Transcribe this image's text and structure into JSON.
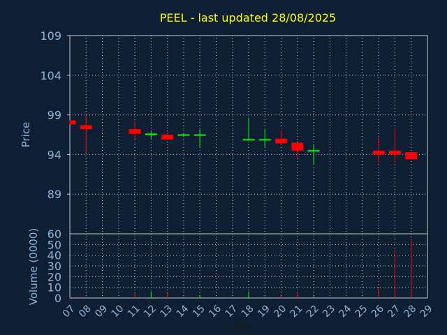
{
  "title": "PEEL - last updated 28/08/2025",
  "colors": {
    "background": "#0f1f33",
    "title": "#ffff00",
    "axis_text": "#8fb4d8",
    "grid": "#c8c8c8",
    "up": "#00ff00",
    "down": "#ff0000"
  },
  "chart_data": [
    {
      "type": "candlestick",
      "ylabel": "Price",
      "ylim": [
        84,
        109
      ],
      "yticks": [
        109,
        104,
        99,
        94,
        89
      ],
      "x": [
        "07",
        "08",
        "09",
        "10",
        "11",
        "12",
        "13",
        "14",
        "15",
        "16",
        "17",
        "18",
        "19",
        "20",
        "21",
        "22",
        "23",
        "24",
        "25",
        "26",
        "27",
        "28",
        "29"
      ],
      "grid": true,
      "candles": [
        {
          "day": "07",
          "open": 98.3,
          "close": 97.8,
          "high": 98.3,
          "low": 97.8
        },
        {
          "day": "08",
          "open": 97.7,
          "close": 97.2,
          "high": 99.0,
          "low": 94.2
        },
        {
          "day": "11",
          "open": 97.2,
          "close": 96.6,
          "high": 98.1,
          "low": 96.0
        },
        {
          "day": "12",
          "open": 96.5,
          "close": 96.6,
          "high": 96.9,
          "low": 96.0
        },
        {
          "day": "13",
          "open": 96.5,
          "close": 95.9,
          "high": 96.8,
          "low": 95.8
        },
        {
          "day": "14",
          "open": 96.4,
          "close": 96.5,
          "high": 96.6,
          "low": 96.3
        },
        {
          "day": "15",
          "open": 96.4,
          "close": 96.5,
          "high": 97.2,
          "low": 94.9
        },
        {
          "day": "18",
          "open": 95.8,
          "close": 95.9,
          "high": 98.6,
          "low": 95.8
        },
        {
          "day": "19",
          "open": 95.8,
          "close": 95.9,
          "high": 97.2,
          "low": 94.9
        },
        {
          "day": "20",
          "open": 96.0,
          "close": 95.4,
          "high": 97.1,
          "low": 95.2
        },
        {
          "day": "21",
          "open": 95.5,
          "close": 94.5,
          "high": 95.5,
          "low": 93.5
        },
        {
          "day": "22",
          "open": 94.4,
          "close": 94.5,
          "high": 95.3,
          "low": 92.8
        },
        {
          "day": "26",
          "open": 94.5,
          "close": 94.0,
          "high": 96.1,
          "low": 92.9
        },
        {
          "day": "27",
          "open": 94.5,
          "close": 94.0,
          "high": 97.2,
          "low": 92.9
        },
        {
          "day": "28",
          "open": 94.3,
          "close": 93.4,
          "high": 94.3,
          "low": 93.4
        }
      ]
    },
    {
      "type": "bar",
      "ylabel": "Volume (0000)",
      "xlabel": "Day",
      "ylim": [
        0,
        60
      ],
      "yticks": [
        60,
        50,
        40,
        30,
        20,
        10,
        0
      ],
      "x": [
        "07",
        "08",
        "09",
        "10",
        "11",
        "12",
        "13",
        "14",
        "15",
        "16",
        "17",
        "18",
        "19",
        "20",
        "21",
        "22",
        "23",
        "24",
        "25",
        "26",
        "27",
        "28",
        "29"
      ],
      "bars": [
        {
          "day": "07",
          "value": 0.5,
          "dir": "down"
        },
        {
          "day": "08",
          "value": 1.5,
          "dir": "down"
        },
        {
          "day": "11",
          "value": 4,
          "dir": "down"
        },
        {
          "day": "12",
          "value": 6,
          "dir": "up"
        },
        {
          "day": "13",
          "value": 4.5,
          "dir": "down"
        },
        {
          "day": "14",
          "value": 1,
          "dir": "up"
        },
        {
          "day": "15",
          "value": 2,
          "dir": "up"
        },
        {
          "day": "18",
          "value": 6,
          "dir": "up"
        },
        {
          "day": "19",
          "value": 1,
          "dir": "up"
        },
        {
          "day": "20",
          "value": 2,
          "dir": "down"
        },
        {
          "day": "21",
          "value": 5,
          "dir": "down"
        },
        {
          "day": "22",
          "value": 1.5,
          "dir": "up"
        },
        {
          "day": "26",
          "value": 10,
          "dir": "down"
        },
        {
          "day": "27",
          "value": 44,
          "dir": "down"
        },
        {
          "day": "28",
          "value": 55,
          "dir": "down"
        }
      ]
    }
  ]
}
